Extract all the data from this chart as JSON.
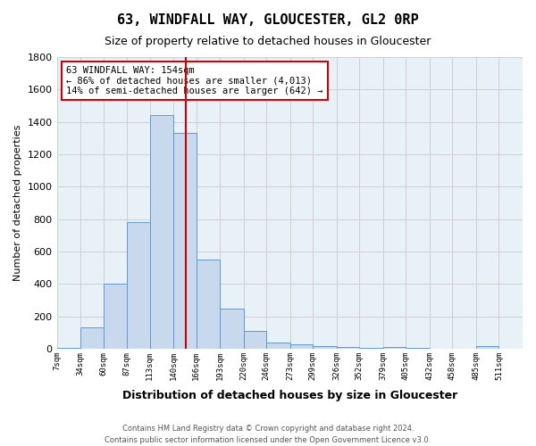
{
  "title": "63, WINDFALL WAY, GLOUCESTER, GL2 0RP",
  "subtitle": "Size of property relative to detached houses in Gloucester",
  "xlabel": "Distribution of detached houses by size in Gloucester",
  "ylabel": "Number of detached properties",
  "footnote1": "Contains HM Land Registry data © Crown copyright and database right 2024.",
  "footnote2": "Contains public sector information licensed under the Open Government Licence v3.0.",
  "annotation_title": "63 WINDFALL WAY: 154sqm",
  "annotation_line1": "← 86% of detached houses are smaller (4,013)",
  "annotation_line2": "14% of semi-detached houses are larger (642) →",
  "property_value": 154,
  "bar_edges": [
    7,
    34,
    60,
    87,
    113,
    140,
    166,
    193,
    220,
    246,
    273,
    299,
    326,
    352,
    379,
    405,
    432,
    458,
    485,
    511,
    538
  ],
  "bar_heights": [
    5,
    130,
    400,
    780,
    1440,
    1330,
    550,
    245,
    110,
    38,
    25,
    15,
    8,
    3,
    8,
    3,
    0,
    0,
    18,
    0
  ],
  "bar_color": "#c8d9ed",
  "bar_edge_color": "#5b9bd5",
  "line_color": "#cc0000",
  "ylim": [
    0,
    1800
  ],
  "yticks": [
    0,
    200,
    400,
    600,
    800,
    1000,
    1200,
    1400,
    1600,
    1800
  ],
  "grid_color": "#d0d0d0",
  "background_color": "#e8f0f8",
  "ann_box_color": "#ffffff",
  "ann_border_color": "#cc0000"
}
